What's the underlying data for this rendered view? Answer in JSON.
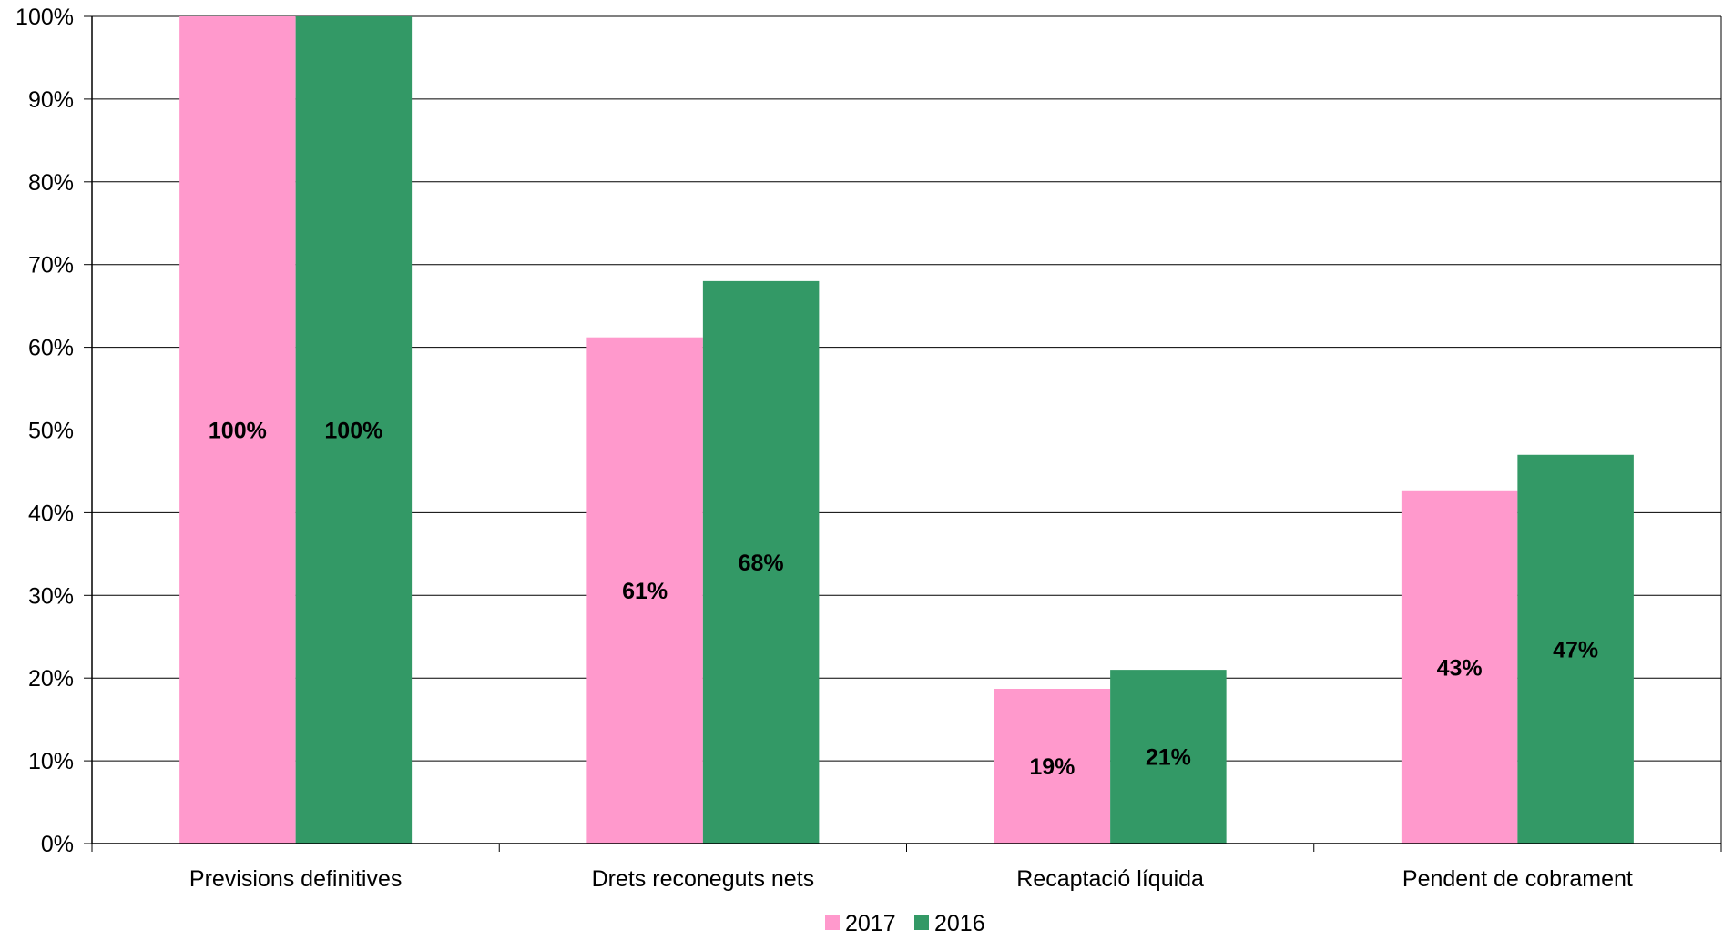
{
  "chart_data": {
    "type": "bar",
    "categories": [
      "Previsions definitives",
      "Drets reconeguts nets",
      "Recaptació líquida",
      "Pendent de cobrament"
    ],
    "series": [
      {
        "name": "2017",
        "color": "#ff99cc",
        "values": [
          100,
          61.2,
          18.7,
          42.6
        ],
        "labels": [
          "100%",
          "61%",
          "19%",
          "43%"
        ]
      },
      {
        "name": "2016",
        "color": "#339966",
        "values": [
          100,
          68,
          21,
          47
        ],
        "labels": [
          "100%",
          "68%",
          "21%",
          "47%"
        ]
      }
    ],
    "y_ticks": [
      "0%",
      "10%",
      "20%",
      "30%",
      "40%",
      "50%",
      "60%",
      "70%",
      "80%",
      "90%",
      "100%"
    ],
    "ylim": [
      0,
      100
    ],
    "grid": true,
    "legend_position": "bottom"
  }
}
